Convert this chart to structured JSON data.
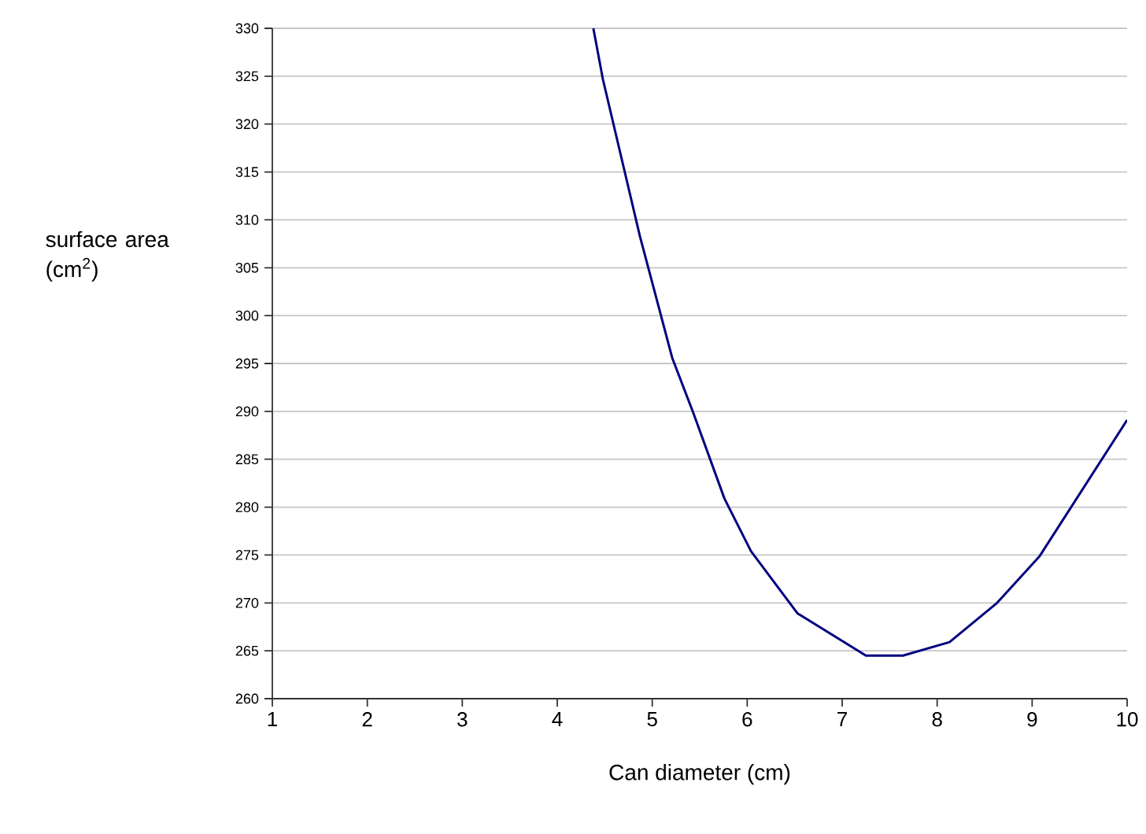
{
  "chart_data": {
    "type": "line",
    "xlabel": "Can diameter (cm)",
    "ylabel": "surface area (cm$^{2}$)",
    "x": [
      4.38,
      4.48,
      4.87,
      5.21,
      5.43,
      5.76,
      6.04,
      6.53,
      7.25,
      7.64,
      8.13,
      8.63,
      9.08,
      10.0
    ],
    "values": [
      330,
      324.7,
      308.3,
      295.6,
      289.9,
      280.9,
      275.4,
      268.9,
      264.5,
      264.5,
      265.9,
      270,
      274.9,
      289.1
    ],
    "color": "#000080",
    "xlim": [
      1,
      10
    ],
    "ylim": [
      260,
      330
    ],
    "xticks": [
      1,
      2,
      3,
      4,
      5,
      6,
      7,
      8,
      9,
      10
    ],
    "yticks": [
      260,
      265,
      270,
      275,
      280,
      285,
      290,
      295,
      300,
      305,
      310,
      315,
      320,
      325,
      330
    ],
    "grid": "y"
  }
}
